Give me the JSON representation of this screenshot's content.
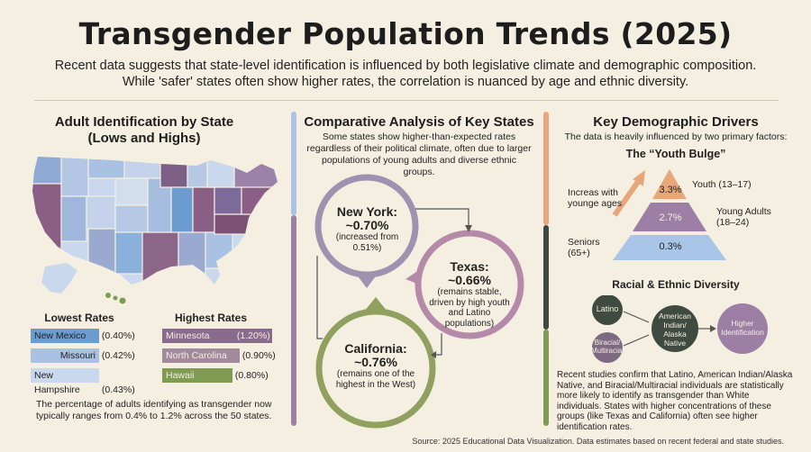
{
  "header": {
    "title": "Transgender Population Trends (2025)",
    "subtitle": "Recent data suggests that state-level identification is influenced by both legislative climate and demographic composition. While 'safer' states often show higher rates, the correlation is nuanced by age and ethnic diversity."
  },
  "left": {
    "title": "Adult Identification by State (Lows and Highs)",
    "lowest_heading": "Lowest Rates",
    "highest_heading": "Highest Rates",
    "lowest": [
      {
        "state": "New Mexico",
        "rate": "(0.40%)",
        "color": "#6b9bd1"
      },
      {
        "state": "Missouri",
        "rate": "(0.42%)",
        "color": "#a9c1e2"
      },
      {
        "state": "New Hampshire",
        "rate": "(0.43%)",
        "color": "#c9d8ec"
      }
    ],
    "highest": [
      {
        "state": "Minnesota",
        "rate": "(1.20%)",
        "color": "#8a6b8c"
      },
      {
        "state": "North Carolina",
        "rate": "(0.90%)",
        "color": "#a28a9c"
      },
      {
        "state": "Hawaii",
        "rate": "(0.80%)",
        "color": "#7f9a52"
      }
    ],
    "note": "The percentage of adults identifying as transgender now typically ranges from 0.4% to 1.2% across the 50 states."
  },
  "middle": {
    "title": "Comparative Analysis of Key States",
    "intro": "Some states show higher-than-expected rates regardless of their political climate, often due to larger populations of young adults and diverse ethnic groups.",
    "ny": {
      "name": "New York:",
      "rate": "~0.70%",
      "note": "(increased from 0.51%)"
    },
    "tx": {
      "name": "Texas:",
      "rate": "~0.66%",
      "note": "(remains stable, driven by high youth and Latino populations)"
    },
    "ca": {
      "name": "California:",
      "rate": "~0.76%",
      "note": "(remains one of the highest in the West)"
    }
  },
  "right": {
    "title": "Key Demographic Drivers",
    "intro": "The data is heavily influenced by two primary factors:",
    "youth_title": "The “Youth Bulge”",
    "arrow_label": "Increas with younge ages",
    "pyramid": [
      {
        "value": "3.3%",
        "label": "Youth (13–17)",
        "color": "#e8a77a"
      },
      {
        "value": "2.7%",
        "label": "Young Adults (18–24)",
        "color": "#9d7fa6"
      },
      {
        "value": "0.3%",
        "label": "Seniors (65+)",
        "color": "#a8c4e6"
      }
    ],
    "seniors_label": "Seniors (65+)",
    "diversity_title": "Racial & Ethnic Diversity",
    "diversity_nodes": {
      "latino": "Latino",
      "biracial": "Biracial/ Multiracial",
      "aian": "American Indian/ Alaska Native",
      "higher": "Higher Identification"
    },
    "note": "Recent studies confirm that Latino, American Indian/Alaska Native, and Biracial/Multiracial individuals are statistically more likely to identify as transgender than White individuals. States with higher concentrations of these groups (like Texas and California) often see higher identification rates."
  },
  "source": "Source: 2025 Educational Data Visualization. Data estimates based on recent federal and state studies."
}
